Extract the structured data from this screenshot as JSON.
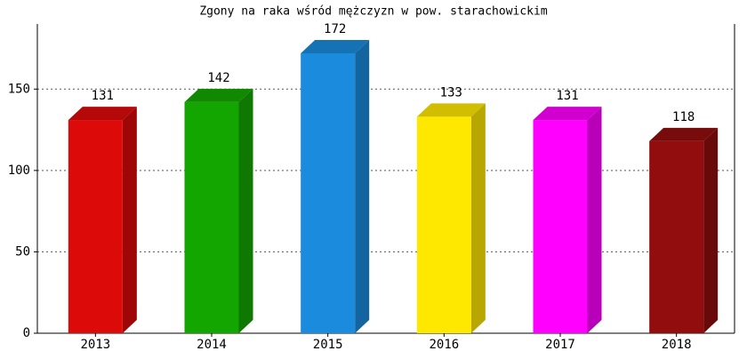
{
  "chart_data": {
    "type": "bar3d",
    "title": "Zgony na raka wśród mężczyzn w pow. starachowickim",
    "categories": [
      "2013",
      "2014",
      "2015",
      "2016",
      "2017",
      "2018"
    ],
    "values": [
      131,
      142,
      172,
      133,
      131,
      118
    ],
    "colors": [
      "#dd0a0a",
      "#14a600",
      "#1a8bdd",
      "#ffe800",
      "#ff00ff",
      "#920e0e"
    ],
    "ylim": [
      0,
      190
    ],
    "yticks": [
      0,
      50,
      100,
      150
    ],
    "grid": true
  }
}
